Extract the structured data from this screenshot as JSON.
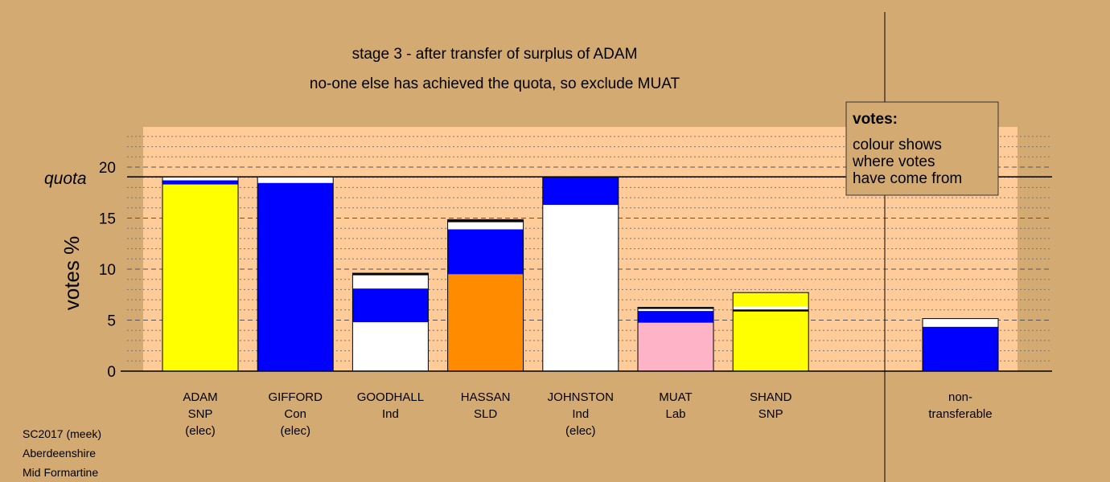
{
  "chart_data": {
    "type": "bar",
    "stacked": true,
    "title": "stage 3 - after transfer of surplus of ADAM",
    "subtitle": "no-one else has achieved the quota, so exclude MUAT",
    "ylabel": "votes %",
    "ylim": [
      0,
      24
    ],
    "yticks": [
      "0",
      "5",
      "10",
      "15",
      "20"
    ],
    "quota": 19.05,
    "quota_label": "quota",
    "grid": "dotted minor and dashed major horizontal lines",
    "colors": {
      "background": "#d4aa73",
      "plot_background": "#ffcc99",
      "yellow": "#ffff00",
      "blue": "#0000ff",
      "white": "#ffffff",
      "orange": "#ff8c00",
      "pink": "#ffb3c6",
      "black": "#000000"
    },
    "candidates": [
      {
        "lines": [
          "ADAM",
          "SNP",
          "(elec)"
        ],
        "segments": [
          {
            "value": 18.3,
            "color": "#ffff00"
          },
          {
            "value": 0.4,
            "color": "#0000ff"
          },
          {
            "value": 0.35,
            "color": "#ffffff"
          }
        ]
      },
      {
        "lines": [
          "GIFFORD",
          "Con",
          "(elec)"
        ],
        "segments": [
          {
            "value": 18.45,
            "color": "#0000ff"
          },
          {
            "value": 0.6,
            "color": "#ffffff"
          }
        ]
      },
      {
        "lines": [
          "GOODHALL",
          "Ind"
        ],
        "segments": [
          {
            "value": 4.8,
            "color": "#ffffff"
          },
          {
            "value": 3.3,
            "color": "#0000ff"
          },
          {
            "value": 1.3,
            "color": "#ffffff"
          },
          {
            "value": 0.2,
            "color": "#000000"
          }
        ]
      },
      {
        "lines": [
          "HASSAN",
          "SLD"
        ],
        "segments": [
          {
            "value": 9.5,
            "color": "#ff8c00"
          },
          {
            "value": 4.4,
            "color": "#0000ff"
          },
          {
            "value": 0.7,
            "color": "#ffffff"
          },
          {
            "value": 0.25,
            "color": "#000000"
          }
        ]
      },
      {
        "lines": [
          "JOHNSTON",
          "Ind",
          "(elec)"
        ],
        "segments": [
          {
            "value": 16.3,
            "color": "#ffffff"
          },
          {
            "value": 2.75,
            "color": "#0000ff"
          }
        ]
      },
      {
        "lines": [
          "MUAT",
          "Lab"
        ],
        "segments": [
          {
            "value": 4.75,
            "color": "#ffb3c6"
          },
          {
            "value": 1.15,
            "color": "#0000ff"
          },
          {
            "value": 0.2,
            "color": "#ffffff"
          },
          {
            "value": 0.15,
            "color": "#000000"
          }
        ]
      },
      {
        "lines": [
          "SHAND",
          "SNP"
        ],
        "segments": [
          {
            "value": 5.85,
            "color": "#ffff00"
          },
          {
            "value": 0.2,
            "color": "#000000"
          },
          {
            "value": 0.3,
            "color": "#ffffff"
          },
          {
            "value": 1.35,
            "color": "#ffff00"
          }
        ]
      }
    ],
    "nontransferable": {
      "lines": [
        "non-",
        "transferable"
      ],
      "segments": [
        {
          "value": 4.35,
          "color": "#0000ff"
        },
        {
          "value": 0.8,
          "color": "#ffffff"
        }
      ]
    },
    "legend": {
      "placement": "top-right",
      "title": "votes:",
      "lines": [
        "colour shows",
        "where votes",
        "have come from"
      ]
    }
  },
  "footer": {
    "lines": [
      "SC2017 (meek)",
      "Aberdeenshire",
      "Mid Formartine"
    ]
  }
}
